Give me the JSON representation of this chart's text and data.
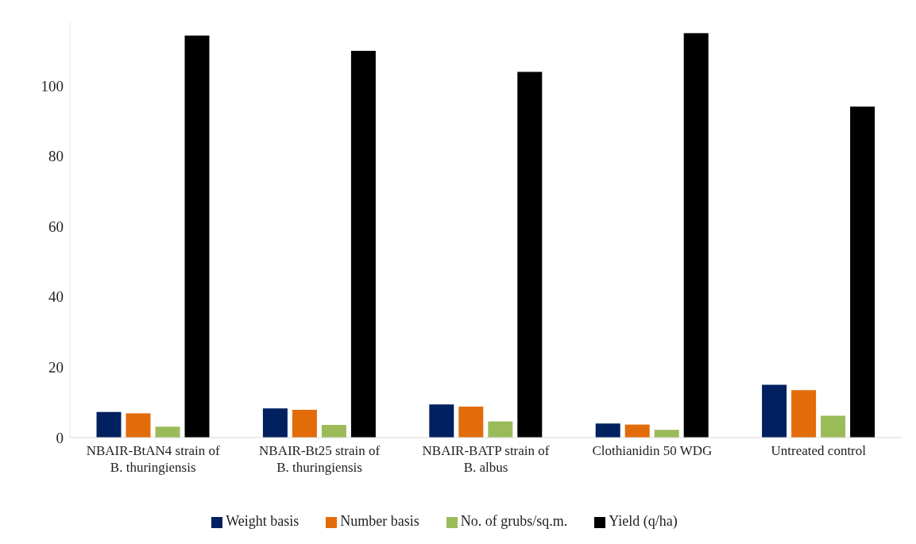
{
  "chart_data": {
    "type": "bar",
    "categories": [
      "NBAIR-BtAN4 strain of B. thuringiensis",
      "NBAIR-Bt25 strain of B. thuringiensis",
      "NBAIR-BATP strain of B. albus",
      "Clothianidin 50 WDG",
      "Untreated control"
    ],
    "series": [
      {
        "name": "Weight basis",
        "color": "#002060",
        "values": [
          7.3,
          8.3,
          9.4,
          4.0,
          15.0
        ]
      },
      {
        "name": "Number basis",
        "color": "#e36c0a",
        "values": [
          6.9,
          7.9,
          8.8,
          3.7,
          13.5
        ]
      },
      {
        "name": "No. of grubs/sq.m.",
        "color": "#9bbb59",
        "values": [
          3.1,
          3.6,
          4.6,
          2.2,
          6.2
        ]
      },
      {
        "name": "Yield (q/ha)",
        "color": "#000000",
        "values": [
          114.2,
          109.9,
          103.9,
          114.9,
          94
        ]
      }
    ],
    "ylim": [
      0,
      118
    ],
    "yticks": [
      0,
      20,
      40,
      60,
      80,
      100
    ],
    "legend": "bottom"
  }
}
